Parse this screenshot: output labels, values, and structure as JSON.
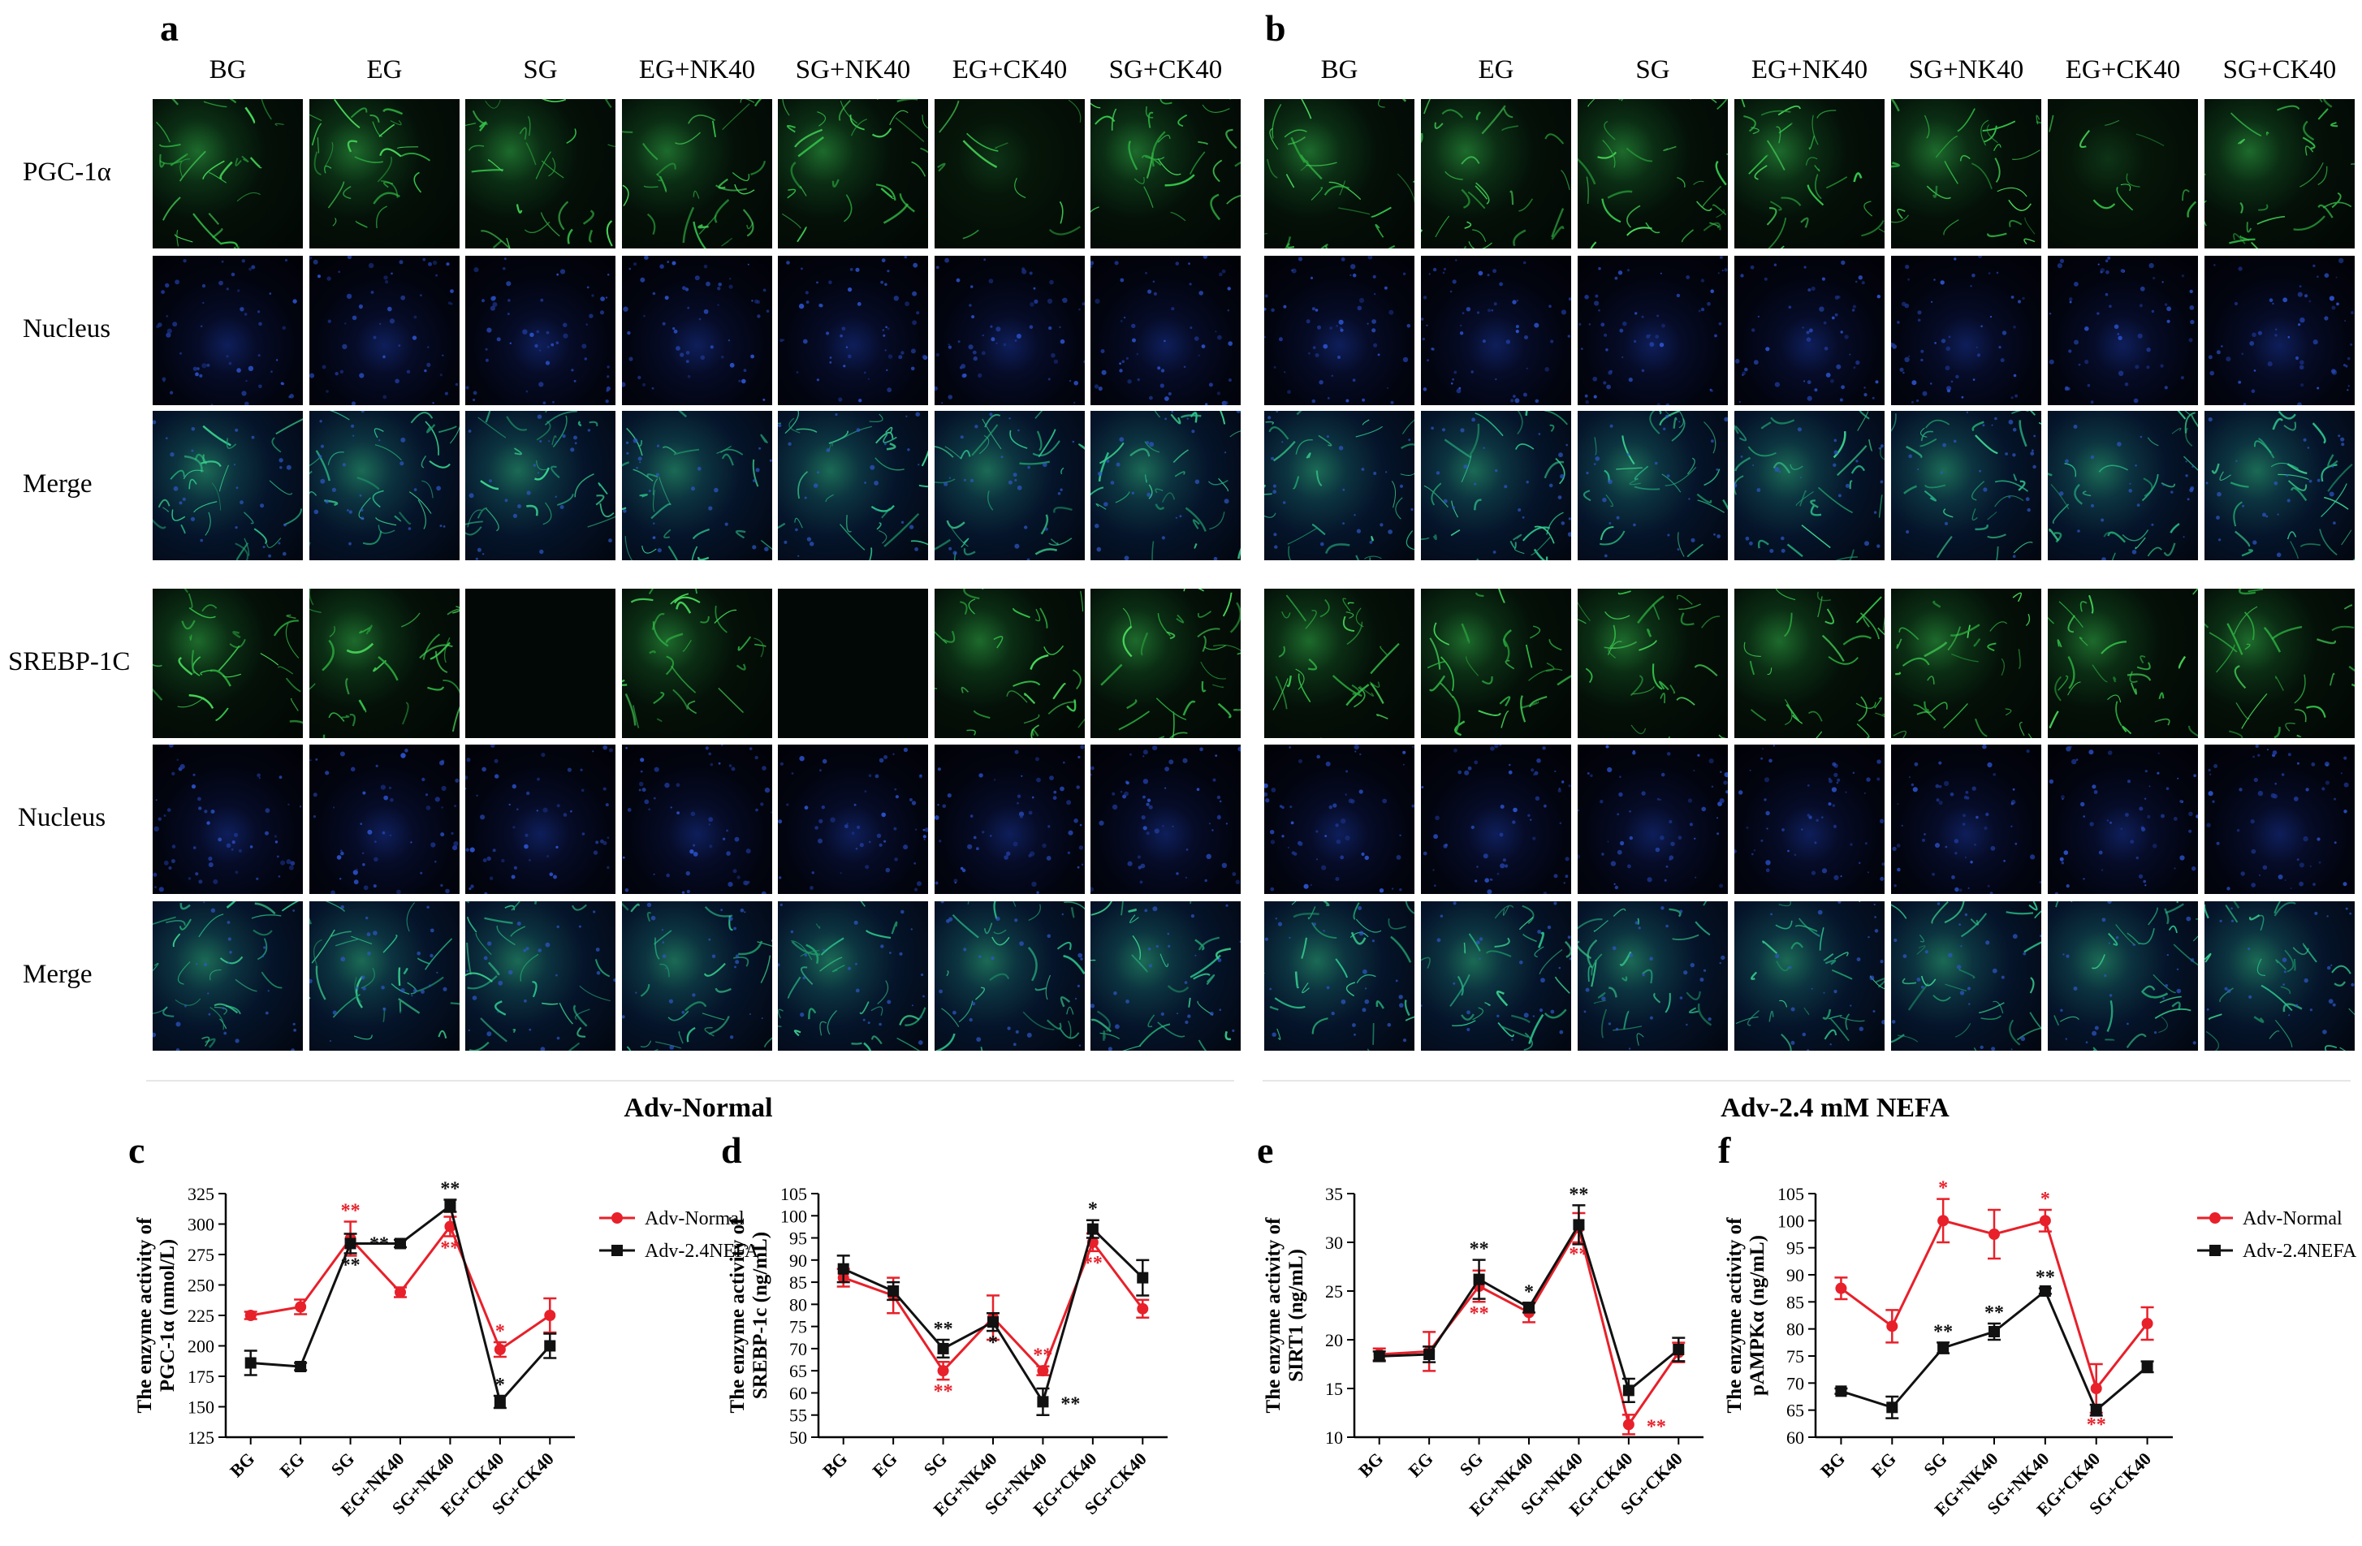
{
  "panels": {
    "a": {
      "letter": "a",
      "section_title": "Adv-Normal"
    },
    "b": {
      "letter": "b",
      "section_title": "Adv-2.4 mM NEFA"
    }
  },
  "image_columns": [
    "BG",
    "EG",
    "SG",
    "EG+NK40",
    "SG+NK40",
    "EG+CK40",
    "SG+CK40"
  ],
  "image_rows": [
    {
      "label": "PGC-1α",
      "stain": "green"
    },
    {
      "label": "Nucleus",
      "stain": "blue"
    },
    {
      "label": "Merge",
      "stain": "merge"
    },
    {
      "label": "SREBP-1C",
      "stain": "green"
    },
    {
      "label": "Nucleus",
      "stain": "blue"
    },
    {
      "label": "Merge",
      "stain": "merge"
    }
  ],
  "colors": {
    "normal": "#e8202a",
    "nefa": "#111111"
  },
  "chart_data": [
    {
      "letter": "c",
      "type": "line",
      "ylabel_line1": "The enzyme activity of",
      "ylabel_line2": "PGC-1α (nmol/L)",
      "categories": [
        "BG",
        "EG",
        "SG",
        "EG+NK40",
        "SG+NK40",
        "EG+CK40",
        "SG+CK40"
      ],
      "ylim": [
        125,
        325
      ],
      "yticks": [
        125,
        150,
        175,
        200,
        225,
        250,
        275,
        300,
        325
      ],
      "legend": "right",
      "series": [
        {
          "name": "Adv-Normal",
          "color": "#e8202a",
          "marker": "circle",
          "values": [
            225,
            232,
            288,
            244,
            298,
            197,
            225
          ],
          "errors": [
            3,
            6,
            14,
            4,
            8,
            6,
            14
          ],
          "stars": [
            {
              "i": 2,
              "text": "**",
              "pos": "above"
            },
            {
              "i": 4,
              "text": "**",
              "pos": "below"
            },
            {
              "i": 5,
              "text": "*",
              "pos": "above"
            }
          ]
        },
        {
          "name": "Adv-2.4NEFA",
          "color": "#111111",
          "marker": "square",
          "values": [
            186,
            183,
            284,
            284,
            315,
            154,
            200
          ],
          "errors": [
            10,
            3,
            8,
            3,
            5,
            5,
            10
          ],
          "stars": [
            {
              "i": 2,
              "text": "**",
              "pos": "below"
            },
            {
              "i": 3,
              "text": "**",
              "pos": "left"
            },
            {
              "i": 4,
              "text": "**",
              "pos": "above"
            },
            {
              "i": 5,
              "text": "*",
              "pos": "above"
            }
          ]
        }
      ]
    },
    {
      "letter": "d",
      "type": "line",
      "ylabel_line1": "The enzyme activity of",
      "ylabel_line2": "SREBP-1c (ng/mL)",
      "categories": [
        "BG",
        "EG",
        "SG",
        "EG+NK40",
        "SG+NK40",
        "EG+CK40",
        "SG+CK40"
      ],
      "ylim": [
        50,
        105
      ],
      "yticks": [
        50,
        55,
        60,
        65,
        70,
        75,
        80,
        85,
        90,
        95,
        100,
        105
      ],
      "series": [
        {
          "name": "Adv-Normal",
          "color": "#e8202a",
          "marker": "circle",
          "values": [
            86,
            82,
            65,
            77,
            65,
            94,
            79
          ],
          "errors": [
            2,
            4,
            2,
            5,
            1,
            2,
            2
          ],
          "stars": [
            {
              "i": 2,
              "text": "**",
              "pos": "below"
            },
            {
              "i": 4,
              "text": "**",
              "pos": "above"
            },
            {
              "i": 5,
              "text": "**",
              "pos": "below"
            }
          ]
        },
        {
          "name": "Adv-2.4NEFA",
          "color": "#111111",
          "marker": "square",
          "values": [
            88,
            83,
            70,
            76,
            58,
            97,
            86
          ],
          "errors": [
            3,
            2,
            2,
            2,
            3,
            2,
            4
          ],
          "stars": [
            {
              "i": 2,
              "text": "**",
              "pos": "above"
            },
            {
              "i": 3,
              "text": "*",
              "pos": "below"
            },
            {
              "i": 4,
              "text": "**",
              "pos": "right"
            },
            {
              "i": 5,
              "text": "*",
              "pos": "above"
            }
          ]
        }
      ]
    },
    {
      "letter": "e",
      "type": "line",
      "ylabel_line1": "The enzyme activity of",
      "ylabel_line2": "SIRT1 (ng/mL)",
      "categories": [
        "BG",
        "EG",
        "SG",
        "EG+NK40",
        "SG+NK40",
        "EG+CK40",
        "SG+CK40"
      ],
      "ylim": [
        10,
        35
      ],
      "yticks": [
        10,
        15,
        20,
        25,
        30,
        35
      ],
      "series": [
        {
          "name": "Adv-Normal",
          "color": "#e8202a",
          "marker": "circle",
          "values": [
            18.5,
            18.8,
            25.5,
            22.8,
            31.5,
            11.3,
            18.7
          ],
          "errors": [
            0.6,
            2,
            1.6,
            1,
            1.5,
            1,
            1
          ],
          "stars": [
            {
              "i": 2,
              "text": "**",
              "pos": "below"
            },
            {
              "i": 4,
              "text": "**",
              "pos": "below"
            },
            {
              "i": 5,
              "text": "**",
              "pos": "right"
            }
          ]
        },
        {
          "name": "Adv-2.4NEFA",
          "color": "#111111",
          "marker": "square",
          "values": [
            18.3,
            18.5,
            26.2,
            23.3,
            31.8,
            14.8,
            19.0
          ],
          "errors": [
            0.5,
            0.8,
            2,
            0.5,
            2,
            1.2,
            1.2
          ],
          "stars": [
            {
              "i": 2,
              "text": "**",
              "pos": "above"
            },
            {
              "i": 3,
              "text": "*",
              "pos": "above"
            },
            {
              "i": 4,
              "text": "**",
              "pos": "above"
            }
          ]
        }
      ]
    },
    {
      "letter": "f",
      "type": "line",
      "ylabel_line1": "The enzyme activity of",
      "ylabel_line2": "pAMPKα (ng/mL)",
      "categories": [
        "BG",
        "EG",
        "SG",
        "EG+NK40",
        "SG+NK40",
        "EG+CK40",
        "SG+CK40"
      ],
      "ylim": [
        60,
        105
      ],
      "yticks": [
        60,
        65,
        70,
        75,
        80,
        85,
        90,
        95,
        100,
        105
      ],
      "legend": "right",
      "series": [
        {
          "name": "Adv-Normal",
          "color": "#e8202a",
          "marker": "circle",
          "values": [
            87.5,
            80.5,
            100,
            97.5,
            100,
            69,
            81
          ],
          "errors": [
            2,
            3,
            4,
            4.5,
            2,
            4.5,
            3
          ],
          "stars": [
            {
              "i": 2,
              "text": "*",
              "pos": "above"
            },
            {
              "i": 4,
              "text": "*",
              "pos": "above"
            },
            {
              "i": 5,
              "text": "**",
              "pos": "below"
            }
          ]
        },
        {
          "name": "Adv-2.4NEFA",
          "color": "#111111",
          "marker": "square",
          "values": [
            68.5,
            65.5,
            76.5,
            79.5,
            87,
            65,
            73
          ],
          "errors": [
            0.5,
            2,
            1,
            1.5,
            0.5,
            1,
            1
          ],
          "stars": [
            {
              "i": 2,
              "text": "**",
              "pos": "above"
            },
            {
              "i": 3,
              "text": "**",
              "pos": "above"
            },
            {
              "i": 4,
              "text": "**",
              "pos": "above"
            }
          ]
        }
      ]
    }
  ]
}
